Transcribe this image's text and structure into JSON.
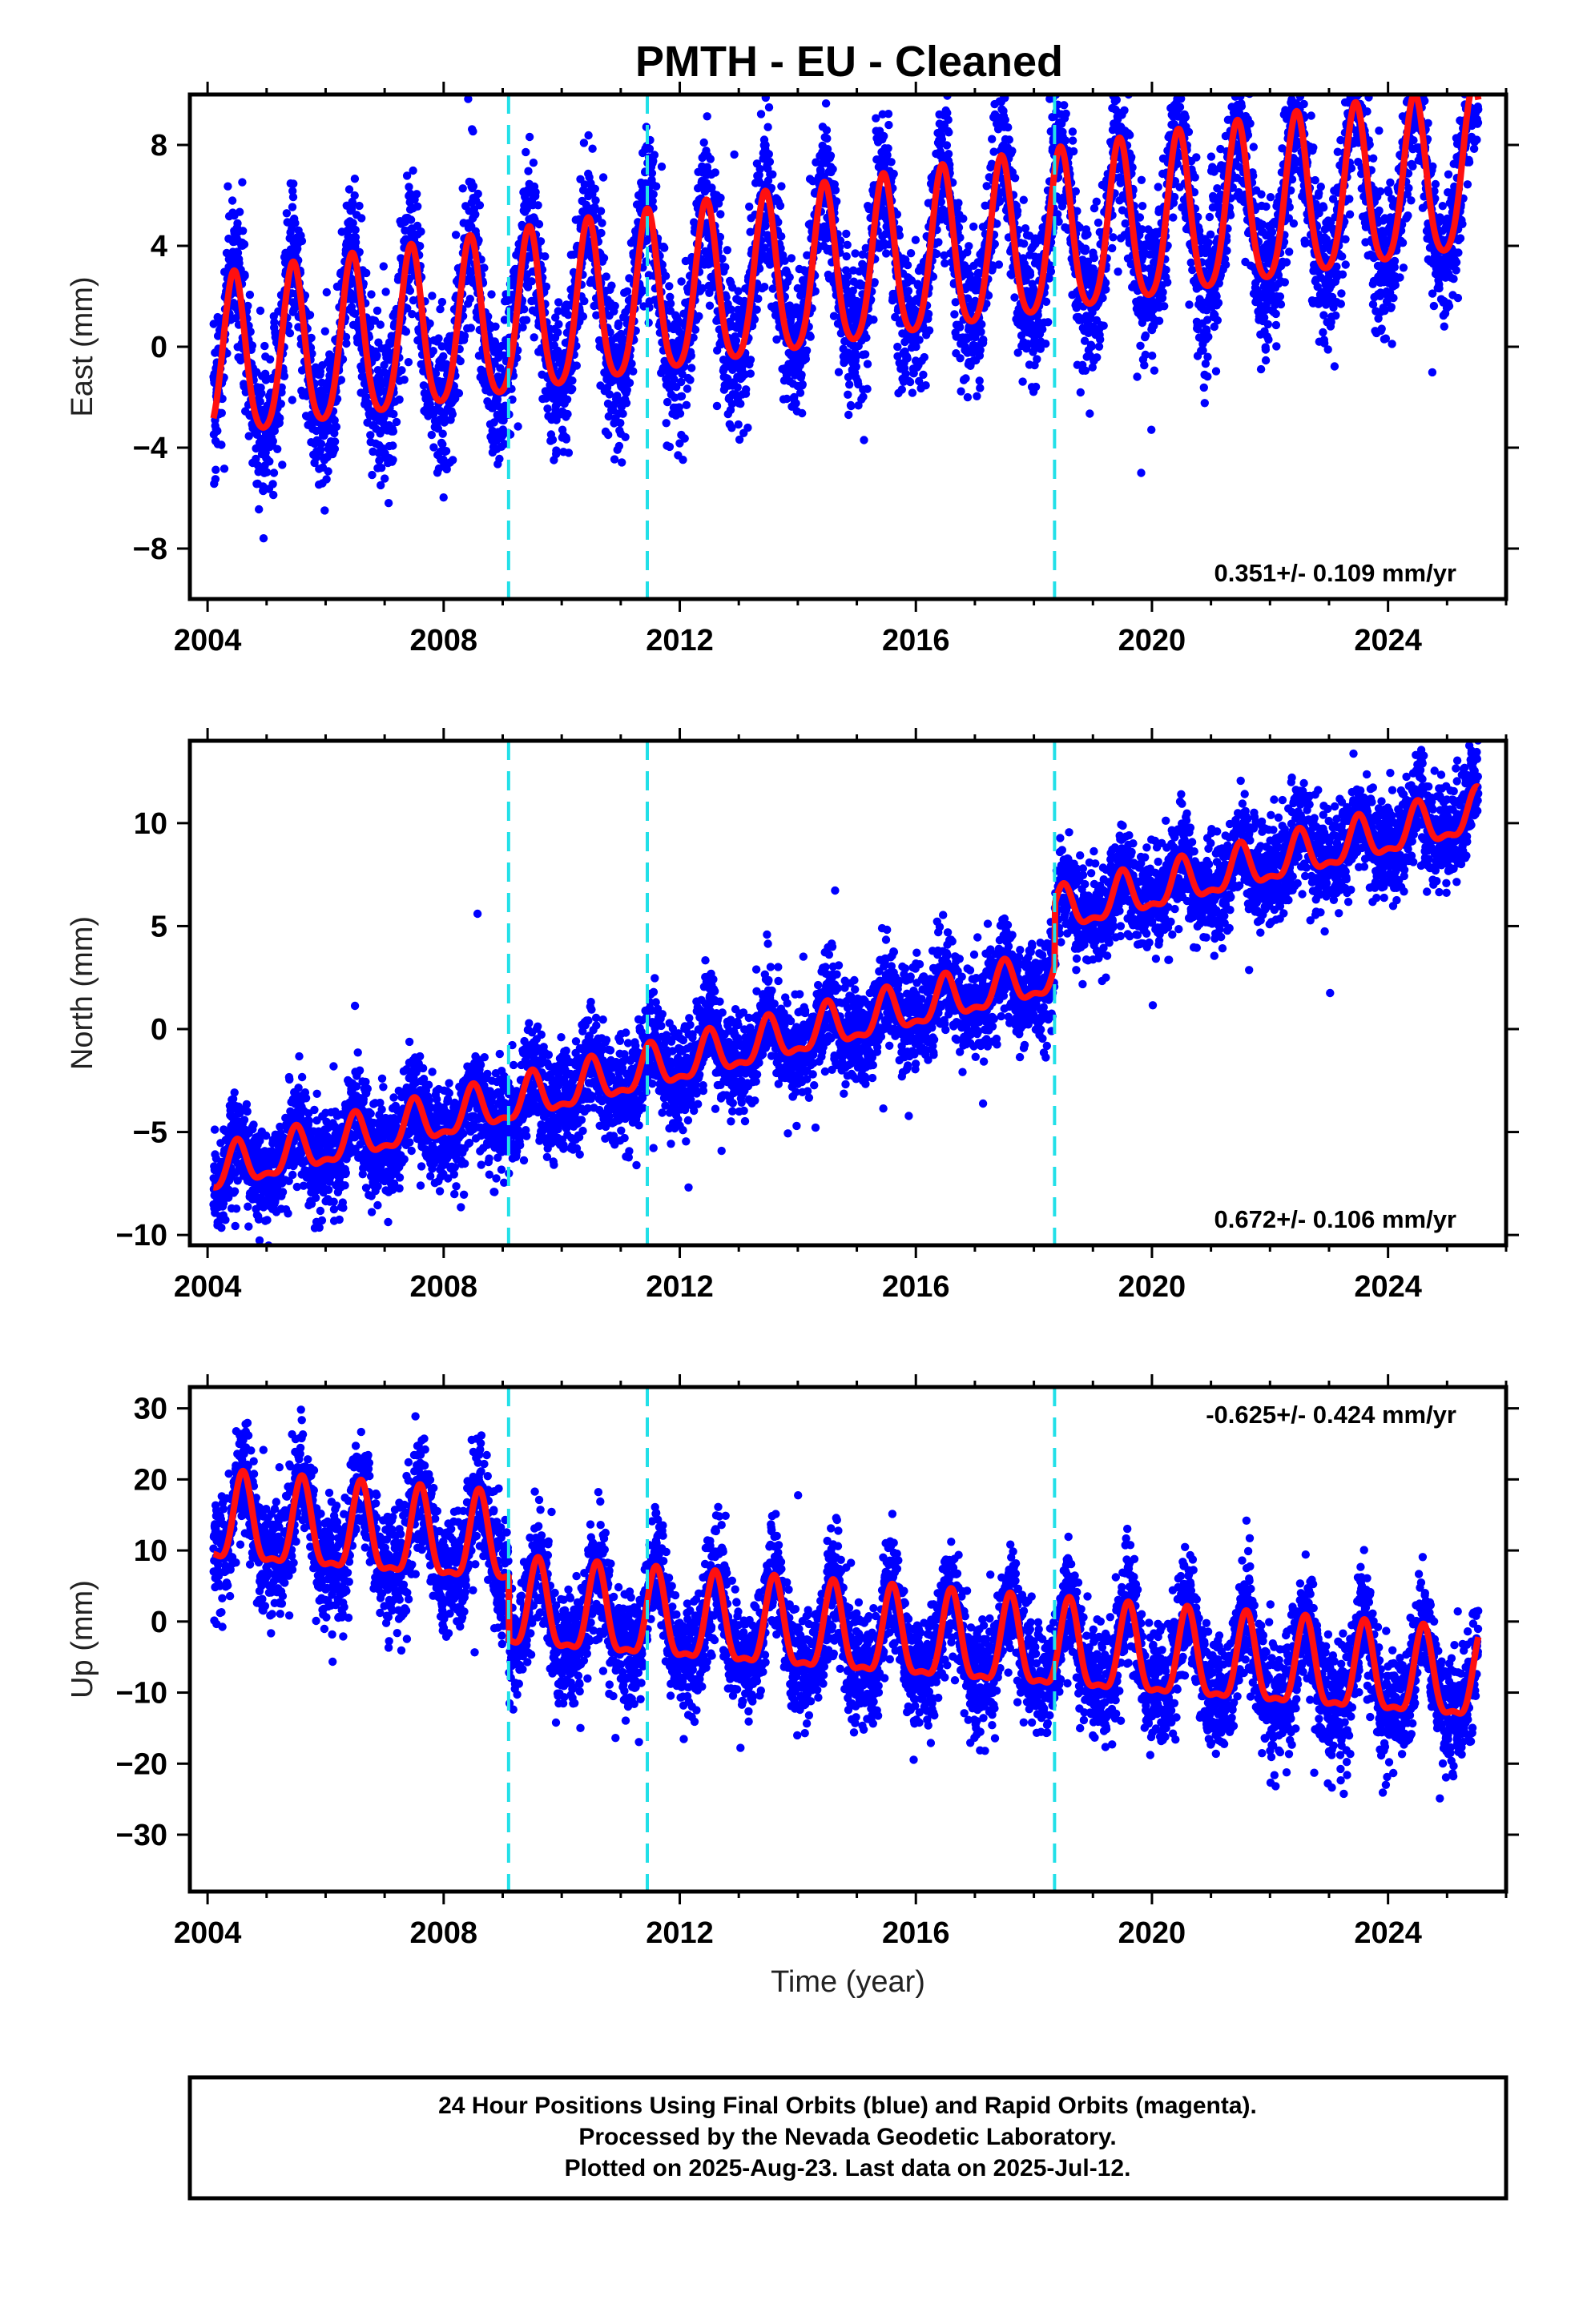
{
  "title": "PMTH  - EU - Cleaned",
  "colors": {
    "data": "#0000ff",
    "model": "#ff1010",
    "event_lines": "#22e0e8"
  },
  "chart_data": [
    {
      "type": "scatter",
      "component": "east",
      "ylabel": "East (mm)",
      "xlabel": "",
      "xlim": [
        2003.7,
        2026.0
      ],
      "ylim": [
        -10,
        10
      ],
      "xticks": [
        2004,
        2008,
        2012,
        2016,
        2020,
        2024
      ],
      "yticks": [
        -8,
        -4,
        0,
        4,
        8
      ],
      "ytick_labels": [
        "−8",
        "−4",
        "0",
        "4",
        "8"
      ],
      "rate_label": "0.351+/- 0.109 mm/yr",
      "rate_label_position": "bottom-right",
      "data_start": 2004.1,
      "data_end": 2025.53,
      "series": [
        {
          "name": "",
          "model": {
            "trend_mm_per_yr": 0.351,
            "offset_mm": -0.8,
            "annual_amplitude_mm": 3.2,
            "annual_peak_year_fraction": 0.45,
            "semiannual_amplitude_mm": 0.5,
            "scatter_sigma_mm": 1.5
          }
        }
      ]
    },
    {
      "type": "scatter",
      "component": "north",
      "ylabel": "North (mm)",
      "xlabel": "",
      "xlim": [
        2003.7,
        2026.0
      ],
      "ylim": [
        -10.5,
        14
      ],
      "xticks": [
        2004,
        2008,
        2012,
        2016,
        2020,
        2024
      ],
      "yticks": [
        -10,
        -5,
        0,
        5,
        10
      ],
      "ytick_labels": [
        "−10",
        "−5",
        "0",
        "5",
        "10"
      ],
      "rate_label": "0.672+/- 0.106 mm/yr",
      "rate_label_position": "bottom-right",
      "data_start": 2004.1,
      "data_end": 2025.53,
      "series": [
        {
          "name": "",
          "model": {
            "trend_mm_per_yr": 0.672,
            "offset_mm": -7.0,
            "annual_amplitude_mm": 1.0,
            "annual_peak_year_fraction": 0.5,
            "semiannual_amplitude_mm": 0.4,
            "steps": [
              {
                "year": 2018.35,
                "offset_mm": 3.0
              }
            ],
            "scatter_sigma_mm": 1.2
          }
        }
      ]
    },
    {
      "type": "scatter",
      "component": "up",
      "ylabel": "Up (mm)",
      "xlabel": "Time (year)",
      "xlim": [
        2003.7,
        2026.0
      ],
      "ylim": [
        -38,
        33
      ],
      "xticks": [
        2004,
        2008,
        2012,
        2016,
        2020,
        2024
      ],
      "yticks": [
        -30,
        -20,
        -10,
        0,
        10,
        20,
        30
      ],
      "ytick_labels": [
        "−30",
        "−20",
        "−10",
        "0",
        "10",
        "20",
        "30"
      ],
      "rate_label": "-0.625+/- 0.424 mm/yr",
      "rate_label_position": "top-right",
      "data_start": 2004.1,
      "data_end": 2025.53,
      "series": [
        {
          "name": "",
          "model": {
            "trend_mm_per_yr": -0.625,
            "offset_mm": 13.5,
            "annual_amplitude_mm": 6.0,
            "annual_peak_year_fraction": 0.6,
            "semiannual_amplitude_mm": 2.0,
            "steps": [
              {
                "year": 2009.1,
                "offset_mm": -9.0
              }
            ],
            "scatter_sigma_mm": 4.0
          }
        }
      ]
    }
  ],
  "event_lines": [
    2009.1,
    2011.45,
    2018.35
  ],
  "footer": {
    "line1": "24 Hour Positions Using Final Orbits (blue) and Rapid Orbits (magenta).",
    "line2": "Processed by the Nevada Geodetic Laboratory.",
    "line3": "Plotted on 2025-Aug-23. Last data on 2025-Jul-12."
  }
}
